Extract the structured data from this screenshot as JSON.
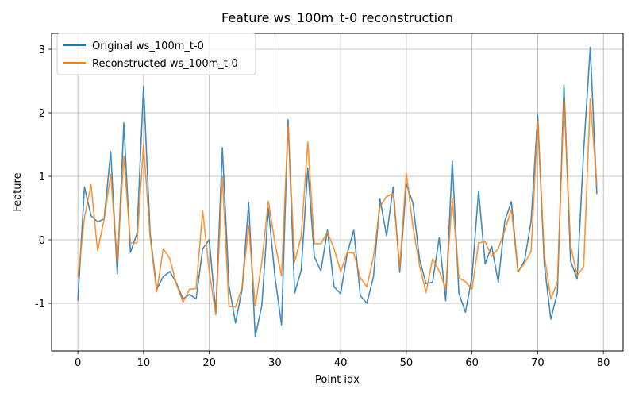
{
  "chart_data": {
    "type": "line",
    "title": "Feature ws_100m_t-0 reconstruction",
    "xlabel": "Point idx",
    "ylabel": "Feature",
    "xlim": [
      -4,
      83
    ],
    "ylim": [
      -1.75,
      3.25
    ],
    "xticks": [
      0,
      10,
      20,
      30,
      40,
      50,
      60,
      70,
      80
    ],
    "yticks": [
      -1,
      0,
      1,
      2,
      3
    ],
    "grid": true,
    "legend": "top-left",
    "x": [
      0,
      1,
      2,
      3,
      4,
      5,
      6,
      7,
      8,
      9,
      10,
      11,
      12,
      13,
      14,
      15,
      16,
      17,
      18,
      19,
      20,
      21,
      22,
      23,
      24,
      25,
      26,
      27,
      28,
      29,
      30,
      31,
      32,
      33,
      34,
      35,
      36,
      37,
      38,
      39,
      40,
      41,
      42,
      43,
      44,
      45,
      46,
      47,
      48,
      49,
      50,
      51,
      52,
      53,
      54,
      55,
      56,
      57,
      58,
      59,
      60,
      61,
      62,
      63,
      64,
      65,
      66,
      67,
      68,
      69,
      70,
      71,
      72,
      73,
      74,
      75,
      76,
      77,
      78,
      79
    ],
    "series": [
      {
        "name": "Original ws_100m_t-0",
        "color": "#1f77b4",
        "values": [
          -0.96,
          0.83,
          0.38,
          0.28,
          0.33,
          1.39,
          -0.54,
          1.84,
          -0.2,
          0.1,
          2.42,
          0.1,
          -0.78,
          -0.58,
          -0.5,
          -0.68,
          -0.93,
          -0.86,
          -0.93,
          -0.14,
          0.0,
          -1.15,
          1.45,
          -0.72,
          -1.31,
          -0.78,
          0.58,
          -1.52,
          -1.04,
          0.5,
          -0.58,
          -1.34,
          1.89,
          -0.84,
          -0.48,
          1.13,
          -0.27,
          -0.49,
          0.16,
          -0.74,
          -0.85,
          -0.22,
          0.15,
          -0.88,
          -1.0,
          -0.58,
          0.64,
          0.06,
          0.83,
          -0.51,
          0.88,
          0.58,
          -0.3,
          -0.69,
          -0.67,
          0.03,
          -0.96,
          1.24,
          -0.84,
          -1.14,
          -0.58,
          0.77,
          -0.38,
          -0.1,
          -0.67,
          0.3,
          0.6,
          -0.51,
          -0.33,
          0.3,
          1.96,
          -0.38,
          -1.25,
          -0.83,
          2.44,
          -0.33,
          -0.62,
          1.41,
          3.03,
          0.72
        ]
      },
      {
        "name": "Reconstructed ws_100m_t-0",
        "color": "#ff7f0e",
        "values": [
          -0.6,
          0.35,
          0.87,
          -0.17,
          0.32,
          1.03,
          -0.35,
          1.32,
          -0.05,
          -0.05,
          1.5,
          0.05,
          -0.82,
          -0.14,
          -0.3,
          -0.7,
          -0.98,
          -0.78,
          -0.77,
          0.46,
          -0.5,
          -1.18,
          1.0,
          -1.05,
          -1.06,
          -0.75,
          0.22,
          -1.04,
          -0.35,
          0.61,
          -0.05,
          -0.57,
          1.8,
          -0.35,
          0.05,
          1.54,
          -0.06,
          -0.06,
          0.12,
          -0.14,
          -0.5,
          -0.2,
          -0.21,
          -0.6,
          -0.74,
          -0.27,
          0.52,
          0.68,
          0.73,
          -0.44,
          1.05,
          0.21,
          -0.4,
          -0.83,
          -0.3,
          -0.49,
          -0.77,
          0.65,
          -0.6,
          -0.66,
          -0.78,
          -0.05,
          -0.03,
          -0.26,
          -0.14,
          0.15,
          0.48,
          -0.5,
          -0.37,
          -0.18,
          1.87,
          -0.24,
          -0.93,
          -0.67,
          2.2,
          -0.08,
          -0.57,
          -0.42,
          2.22,
          0.86
        ]
      }
    ]
  }
}
